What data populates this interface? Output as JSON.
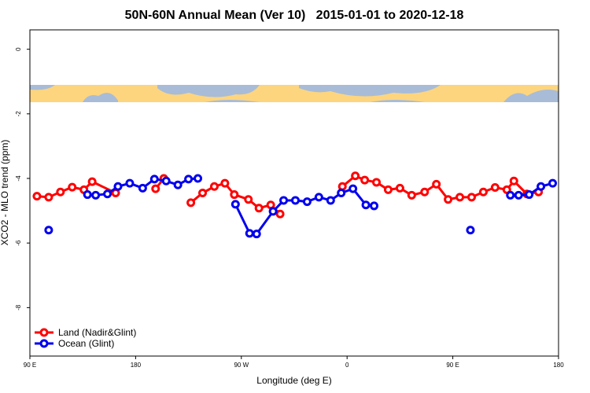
{
  "chart_data": {
    "type": "line",
    "title": "50N-60N Annual Mean (Ver 10)   2015-01-01 to 2020-12-18",
    "x_label": "Longitude (deg E)",
    "y_label": "XCO2 - MLO trend (ppm)",
    "xlim": [
      90,
      540
    ],
    "xticks": [
      {
        "value": 90,
        "label": "90 E"
      },
      {
        "value": 180,
        "label": "180"
      },
      {
        "value": 270,
        "label": "90 W"
      },
      {
        "value": 360,
        "label": "0"
      },
      {
        "value": 450,
        "label": "90 E"
      },
      {
        "value": 540,
        "label": "180"
      }
    ],
    "ylim": [
      -9.5,
      0.6
    ],
    "yticks": [
      0,
      -2,
      -4,
      -6,
      -8
    ],
    "legend": "lower left",
    "series": [
      {
        "name": "Land (Nadir&Glint)",
        "color": "#ff0000",
        "x": [
          96,
          106,
          116,
          126,
          136,
          143,
          163,
          null,
          197,
          204,
          null,
          227,
          237,
          247,
          256,
          264,
          276,
          285,
          295,
          303,
          null,
          356,
          367,
          375,
          385,
          395,
          405,
          415,
          426,
          436,
          446,
          456,
          466,
          476,
          486,
          496,
          502,
          513,
          523
        ],
        "values": [
          -4.55,
          -4.58,
          -4.42,
          -4.27,
          -4.35,
          -4.1,
          -4.45,
          null,
          -4.32,
          -4.0,
          null,
          -4.75,
          -4.45,
          -4.25,
          -4.15,
          -4.5,
          -4.65,
          -4.92,
          -4.82,
          -5.1,
          null,
          -4.25,
          -3.92,
          -4.05,
          -4.12,
          -4.35,
          -4.3,
          -4.52,
          -4.42,
          -4.18,
          -4.65,
          -4.58,
          -4.58,
          -4.42,
          -4.28,
          -4.35,
          -4.08,
          -4.48,
          -4.42
        ]
      },
      {
        "name": "Ocean (Glint)",
        "color": "#0000ee",
        "x": [
          106,
          null,
          139,
          146,
          156,
          165,
          175,
          186,
          196,
          206,
          216,
          225,
          233,
          null,
          265,
          277,
          283,
          297,
          306,
          316,
          326,
          336,
          346,
          355,
          365,
          376,
          383,
          null,
          465,
          null,
          499,
          506,
          515,
          525,
          535
        ],
        "values": [
          -5.6,
          null,
          -4.5,
          -4.52,
          -4.48,
          -4.25,
          -4.15,
          -4.3,
          -4.02,
          -4.08,
          -4.2,
          -4.02,
          -4.0,
          null,
          -4.8,
          -5.7,
          -5.72,
          -5.02,
          -4.68,
          -4.68,
          -4.72,
          -4.58,
          -4.68,
          -4.45,
          -4.32,
          -4.82,
          -4.85,
          null,
          -5.6,
          null,
          -4.52,
          -4.52,
          -4.5,
          -4.25,
          -4.15
        ]
      }
    ]
  }
}
